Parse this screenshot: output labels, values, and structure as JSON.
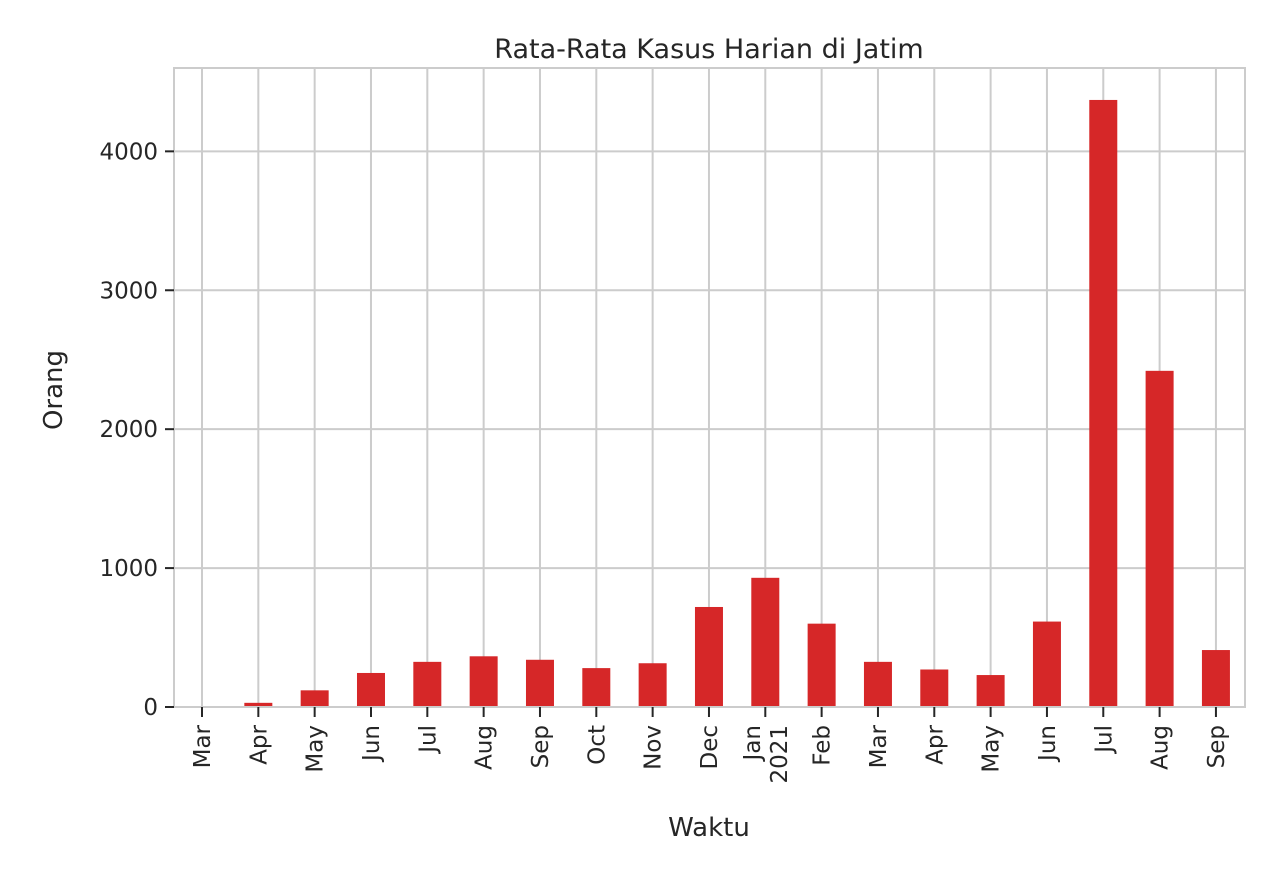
{
  "chart_data": {
    "type": "bar",
    "title": "Rata-Rata Kasus Harian di Jatim",
    "xlabel": "Waktu",
    "ylabel": "Orang",
    "categories": [
      [
        "Mar"
      ],
      [
        "Apr"
      ],
      [
        "May"
      ],
      [
        "Jun"
      ],
      [
        "Jul"
      ],
      [
        "Aug"
      ],
      [
        "Sep"
      ],
      [
        "Oct"
      ],
      [
        "Nov"
      ],
      [
        "Dec"
      ],
      [
        "Jan",
        "2021"
      ],
      [
        "Feb"
      ],
      [
        "Mar"
      ],
      [
        "Apr"
      ],
      [
        "May"
      ],
      [
        "Jun"
      ],
      [
        "Jul"
      ],
      [
        "Aug"
      ],
      [
        "Sep"
      ]
    ],
    "values": [
      2,
      30,
      120,
      245,
      325,
      365,
      340,
      280,
      315,
      720,
      930,
      600,
      325,
      270,
      230,
      615,
      4370,
      2420,
      410
    ],
    "ylim": [
      0,
      4600
    ],
    "yticks": [
      0,
      1000,
      2000,
      3000,
      4000
    ],
    "grid": true,
    "colors": {
      "bar": "#d62728",
      "grid": "#cccccc",
      "axes": "#cccccc",
      "text": "#262626"
    }
  }
}
